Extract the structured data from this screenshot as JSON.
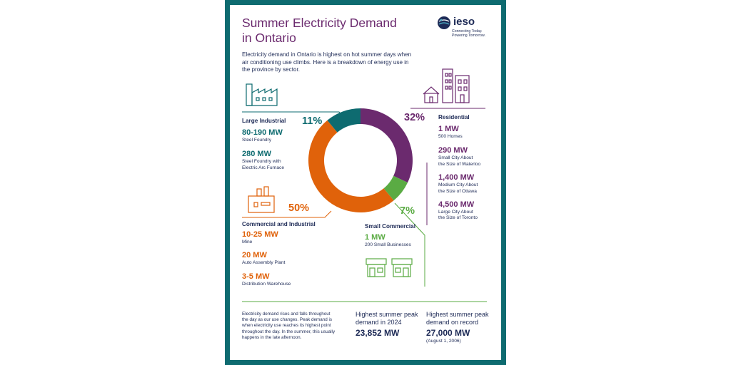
{
  "title_line1": "Summer Electricity Demand",
  "title_line2": "in Ontario",
  "intro": "Electricity demand in Ontario is highest on hot summer days when air conditioning use climbs. Here is a breakdown of energy use in the province by sector.",
  "logo": {
    "name": "ieso",
    "tagline1": "Connecting Today.",
    "tagline2": "Powering Tomorrow."
  },
  "colors": {
    "teal": "#0e6b70",
    "purple": "#6b2a6e",
    "orange": "#e0620a",
    "green": "#5aab43",
    "navy": "#1d2a56"
  },
  "sectors": {
    "large_industrial": {
      "title": "Large Industrial",
      "percent": "11%",
      "items": [
        {
          "mw": "80-190 MW",
          "desc1": "Steel Foundry",
          "desc2": ""
        },
        {
          "mw": "280 MW",
          "desc1": "Steel Foundry with",
          "desc2": "Electric Arc Furnace"
        }
      ]
    },
    "residential": {
      "title": "Residential",
      "percent": "32%",
      "items": [
        {
          "mw": "1 MW",
          "desc1": "500 Homes",
          "desc2": ""
        },
        {
          "mw": "290 MW",
          "desc1": "Small City About",
          "desc2": "the Size of Waterloo"
        },
        {
          "mw": "1,400 MW",
          "desc1": "Medium City About",
          "desc2": "the Size of Ottawa"
        },
        {
          "mw": "4,500 MW",
          "desc1": "Large City About",
          "desc2": "the Size of Toronto"
        }
      ]
    },
    "commercial_industrial": {
      "title": "Commercial and Industrial",
      "percent": "50%",
      "items": [
        {
          "mw": "10-25 MW",
          "desc1": "Mine"
        },
        {
          "mw": "20 MW",
          "desc1": "Auto Assembly Plant"
        },
        {
          "mw": "3-5 MW",
          "desc1": "Distribution Warehouse"
        }
      ]
    },
    "small_commercial": {
      "title": "Small Commercial",
      "percent": "7%",
      "items": [
        {
          "mw": "1 MW",
          "desc1": "200 Small Businesses"
        }
      ]
    }
  },
  "donut": [
    {
      "sector": "Residential",
      "value": 32,
      "color": "#6b2a6e"
    },
    {
      "sector": "Small Commercial",
      "value": 7,
      "color": "#5aab43"
    },
    {
      "sector": "Commercial and Industrial",
      "value": 50,
      "color": "#e0620a"
    },
    {
      "sector": "Large Industrial",
      "value": 11,
      "color": "#0e6b70"
    }
  ],
  "footer": {
    "note": [
      "Electricity demand rises and falls throughout",
      "the day as our use changes. Peak demand is",
      "when electricity use reaches its highest point",
      "throughout the day. In the summer, this usually",
      "happens in the late afternoon."
    ],
    "peak2024_label1": "Highest summer peak",
    "peak2024_label2": "demand in 2024",
    "peak2024_value": "23,852 MW",
    "record_label1": "Highest summer peak",
    "record_label2": "demand on record",
    "record_value": "27,000 MW",
    "record_date": "(August 1, 2006)"
  }
}
